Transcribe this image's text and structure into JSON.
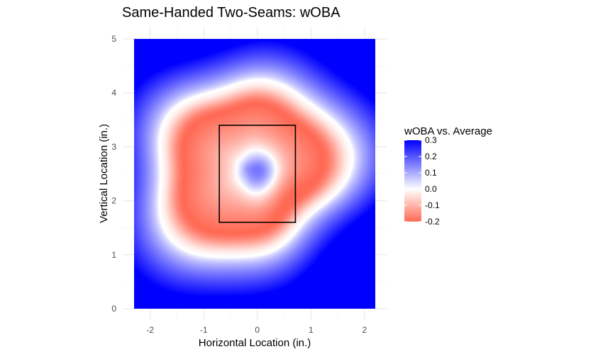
{
  "chart_data": {
    "type": "heatmap",
    "title": "Same-Handed Two-Seams: wOBA",
    "xlabel": "Horizontal Location (in.)",
    "ylabel": "Vertical Location (in.)",
    "xlim": [
      -2.3,
      2.2
    ],
    "ylim": [
      0,
      5
    ],
    "x_ticks": [
      -2,
      -1,
      0,
      1,
      2
    ],
    "x_tick_labels": [
      "-2",
      "-1",
      "0",
      "1",
      "2"
    ],
    "y_ticks": [
      0,
      1,
      2,
      3,
      4,
      5
    ],
    "y_tick_labels": [
      "0",
      "1",
      "2",
      "3",
      "4",
      "5"
    ],
    "grid": true,
    "strike_zone": {
      "x": [
        -0.71,
        0.71
      ],
      "y": [
        1.6,
        3.4
      ]
    },
    "legend": {
      "title": "wOBA vs. Average",
      "position": "right",
      "breaks": [
        0.3,
        0.2,
        0.1,
        0.0,
        -0.1,
        -0.2
      ],
      "labels": [
        "0.3",
        "0.2",
        "0.1",
        "0.0",
        "-0.1",
        "-0.2"
      ],
      "range": [
        -0.2,
        0.3
      ]
    },
    "color_scale": {
      "low": "#ff6a55",
      "mid": "#ffffff",
      "high": "#0000ff"
    },
    "surface_shape": {
      "center": [
        -0.2,
        2.6
      ],
      "ring_radius": 1.22,
      "outer_zero_radius": 1.72,
      "peak_center": [
        0.05,
        2.5
      ],
      "note_shape": "low region forms a ring around the strike zone with a slightly positive pocket inside"
    }
  }
}
